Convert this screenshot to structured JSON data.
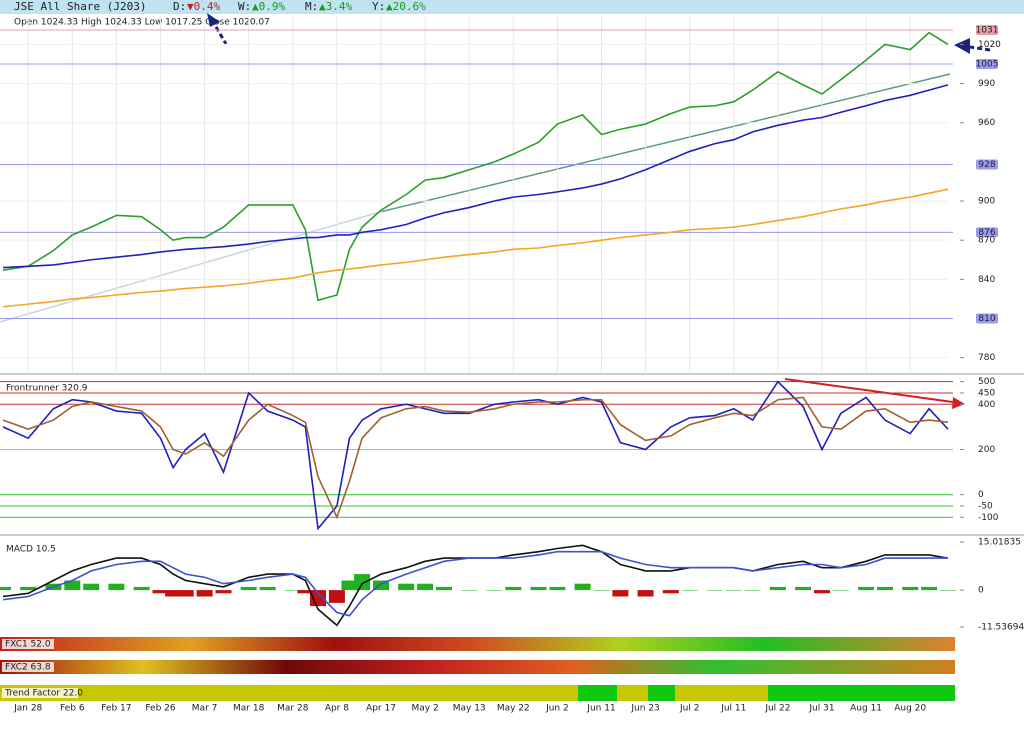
{
  "header": {
    "title": "JSE All Share (J203)",
    "d_label": "D:",
    "d": "▼0.4%",
    "w_label": "W:",
    "w": "▲0.9%",
    "m_label": "M:",
    "m": "▲3.4%",
    "y_label": "Y:",
    "y": "▲20.6%",
    "ohlc": "Open 1024.33 High 1024.33 Low 1017.25 Close 1020.07"
  },
  "panels": {
    "fxc1": "FXC1 52.0",
    "fxc2": "FXC2 63.8",
    "trend": "Trend Factor 22.0"
  },
  "chart_data": [
    {
      "type": "line",
      "x": [
        0,
        4,
        8,
        11,
        14,
        18,
        22,
        25,
        27,
        29,
        32,
        35,
        39,
        42,
        46,
        48,
        50,
        53,
        55,
        57,
        60,
        64,
        67,
        70,
        74,
        78,
        81,
        85,
        88,
        92,
        95,
        98,
        102,
        106,
        109,
        113,
        116,
        119,
        123,
        127,
        130,
        133,
        137,
        140,
        144,
        147,
        150
      ],
      "xlim": [
        0,
        150
      ],
      "xticks": [
        {
          "value": 4,
          "label": "Jan 28"
        },
        {
          "value": 11,
          "label": "Feb 6"
        },
        {
          "value": 18,
          "label": "Feb 17"
        },
        {
          "value": 25,
          "label": "Feb 26"
        },
        {
          "value": 32,
          "label": "Mar 7"
        },
        {
          "value": 39,
          "label": "Mar 18"
        },
        {
          "value": 46,
          "label": "Mar 28"
        },
        {
          "value": 53,
          "label": "Apr 8"
        },
        {
          "value": 60,
          "label": "Apr 17"
        },
        {
          "value": 67,
          "label": "May 2"
        },
        {
          "value": 74,
          "label": "May 13"
        },
        {
          "value": 81,
          "label": "May 22"
        },
        {
          "value": 88,
          "label": "Jun 2"
        },
        {
          "value": 95,
          "label": "Jun 11"
        },
        {
          "value": 102,
          "label": "Jun 23"
        },
        {
          "value": 109,
          "label": "Jul 2"
        },
        {
          "value": 116,
          "label": "Jul 11"
        },
        {
          "value": 123,
          "label": "Jul 22"
        },
        {
          "value": 130,
          "label": "Jul 31"
        },
        {
          "value": 137,
          "label": "Aug 11"
        },
        {
          "value": 144,
          "label": "Aug 20"
        }
      ],
      "ylim": [
        769,
        1041
      ],
      "yticks": [
        780,
        840,
        870,
        900,
        960,
        990,
        1020
      ],
      "levels": [
        {
          "value": 810,
          "color": "#9a9aee"
        },
        {
          "value": 876,
          "color": "#9a9aee"
        },
        {
          "value": 928,
          "color": "#9a9aee"
        },
        {
          "value": 1005,
          "color": "#9a9aee"
        },
        {
          "value": 1031,
          "color": "#e8a0a8"
        }
      ],
      "series": [
        {
          "name": "Close",
          "color": "#2aa02a",
          "values": [
            847,
            850,
            862,
            874,
            880,
            889,
            888,
            878,
            870,
            872,
            872,
            880,
            897,
            897,
            897,
            878,
            824,
            828,
            863,
            880,
            893,
            905,
            916,
            918,
            924,
            930,
            936,
            945,
            959,
            966,
            951,
            955,
            959,
            967,
            972,
            973,
            976,
            985,
            999,
            989,
            982,
            993,
            1008,
            1020,
            1016,
            1029,
            1020
          ]
        },
        {
          "name": "MA50",
          "color": "#2020c0",
          "values": [
            849,
            850,
            851,
            853,
            855,
            857,
            859,
            861,
            862,
            863,
            864,
            865,
            867,
            869,
            871,
            872,
            872,
            874,
            874,
            876,
            878,
            882,
            887,
            891,
            895,
            900,
            903,
            905,
            907,
            910,
            913,
            917,
            924,
            932,
            938,
            944,
            947,
            953,
            958,
            962,
            964,
            968,
            973,
            977,
            981,
            985,
            989
          ]
        },
        {
          "name": "MA200",
          "color": "#f5a623",
          "values": [
            819,
            821,
            823,
            825,
            826,
            828,
            830,
            831,
            832,
            833,
            834,
            835,
            837,
            839,
            841,
            843,
            845,
            847,
            848,
            849,
            851,
            853,
            855,
            857,
            859,
            861,
            863,
            864,
            866,
            868,
            870,
            872,
            874,
            876,
            878,
            879,
            880,
            882,
            885,
            888,
            891,
            894,
            897,
            900,
            903,
            906,
            909
          ]
        }
      ]
    },
    {
      "type": "line",
      "title": "Frontrunner 320.9",
      "x": [
        0,
        4,
        8,
        11,
        14,
        18,
        22,
        25,
        27,
        29,
        32,
        35,
        39,
        42,
        46,
        48,
        50,
        53,
        55,
        57,
        60,
        64,
        67,
        70,
        74,
        78,
        81,
        85,
        88,
        92,
        95,
        98,
        102,
        106,
        109,
        113,
        116,
        119,
        123,
        127,
        130,
        133,
        137,
        140,
        144,
        147,
        150
      ],
      "xlim": [
        0,
        150
      ],
      "ylim": [
        -165,
        525
      ],
      "yticks": [
        500,
        450,
        400,
        200,
        0,
        -50,
        -100
      ],
      "levels": [
        {
          "value": 500,
          "color": "#c03030"
        },
        {
          "value": 450,
          "color": "#c03030"
        },
        {
          "value": 400,
          "color": "#c03030"
        },
        {
          "value": 200,
          "color": "#e8b040"
        },
        {
          "value": 0,
          "color": "#30c030"
        },
        {
          "value": -50,
          "color": "#30c030"
        },
        {
          "value": -100,
          "color": "#30c030"
        }
      ],
      "series": [
        {
          "name": "FR",
          "color": "#2020c0",
          "values": [
            300,
            250,
            380,
            420,
            410,
            370,
            360,
            250,
            120,
            200,
            270,
            100,
            450,
            370,
            330,
            300,
            -150,
            -50,
            250,
            330,
            380,
            400,
            380,
            360,
            360,
            400,
            410,
            420,
            400,
            430,
            410,
            230,
            200,
            300,
            340,
            350,
            380,
            330,
            500,
            390,
            200,
            360,
            430,
            330,
            270,
            380,
            290
          ]
        },
        {
          "name": "FR signal",
          "color": "#a06030",
          "values": [
            330,
            290,
            330,
            390,
            410,
            390,
            370,
            300,
            200,
            180,
            230,
            170,
            330,
            400,
            350,
            320,
            80,
            -100,
            60,
            250,
            340,
            380,
            390,
            370,
            365,
            380,
            400,
            410,
            410,
            420,
            420,
            310,
            240,
            260,
            310,
            340,
            360,
            350,
            420,
            430,
            300,
            290,
            370,
            380,
            320,
            330,
            320
          ]
        }
      ]
    },
    {
      "type": "line",
      "title": "MACD 10.5",
      "x": [
        0,
        4,
        8,
        11,
        14,
        18,
        22,
        25,
        27,
        29,
        32,
        35,
        39,
        42,
        46,
        48,
        50,
        53,
        55,
        57,
        60,
        64,
        67,
        70,
        74,
        78,
        81,
        85,
        88,
        92,
        95,
        98,
        102,
        106,
        109,
        113,
        116,
        119,
        123,
        127,
        130,
        133,
        137,
        140,
        144,
        147,
        150
      ],
      "xlim": [
        0,
        150
      ],
      "ylim": [
        -13.1,
        16.6
      ],
      "yticks": [
        15.01835,
        0,
        -11.53694
      ],
      "series": [
        {
          "name": "Histogram",
          "type": "bar",
          "color": "#20b020",
          "negative_color": "#c01010",
          "values": [
            1,
            1,
            2,
            3,
            2,
            2,
            1,
            -1,
            -2,
            -2,
            -2,
            -1,
            1,
            1,
            0,
            -1,
            -5,
            -4,
            3,
            5,
            3,
            2,
            2,
            1,
            0,
            0,
            1,
            1,
            1,
            2,
            0,
            -2,
            -2,
            -1,
            0,
            0,
            0,
            0,
            1,
            1,
            -1,
            0,
            1,
            1,
            1,
            1,
            0
          ]
        },
        {
          "name": "MACD",
          "color": "#111111",
          "values": [
            -2,
            -1,
            3,
            6,
            8,
            10,
            10,
            8,
            5,
            3,
            2,
            1,
            4,
            5,
            5,
            3,
            -6,
            -11,
            -5,
            2,
            5,
            7,
            9,
            10,
            10,
            10,
            11,
            12,
            13,
            14,
            12,
            8,
            6,
            6,
            7,
            7,
            7,
            6,
            8,
            9,
            7,
            7,
            9,
            11,
            11,
            11,
            10
          ]
        },
        {
          "name": "Signal",
          "color": "#4050d0",
          "values": [
            -3,
            -2,
            1,
            3,
            6,
            8,
            9,
            9,
            7,
            5,
            4,
            2,
            3,
            4,
            5,
            4,
            -1,
            -7,
            -8,
            -3,
            2,
            5,
            7,
            9,
            10,
            10,
            10,
            11,
            12,
            12,
            12,
            10,
            8,
            7,
            7,
            7,
            7,
            6,
            7,
            8,
            8,
            7,
            8,
            10,
            10,
            10,
            10
          ]
        }
      ]
    }
  ]
}
